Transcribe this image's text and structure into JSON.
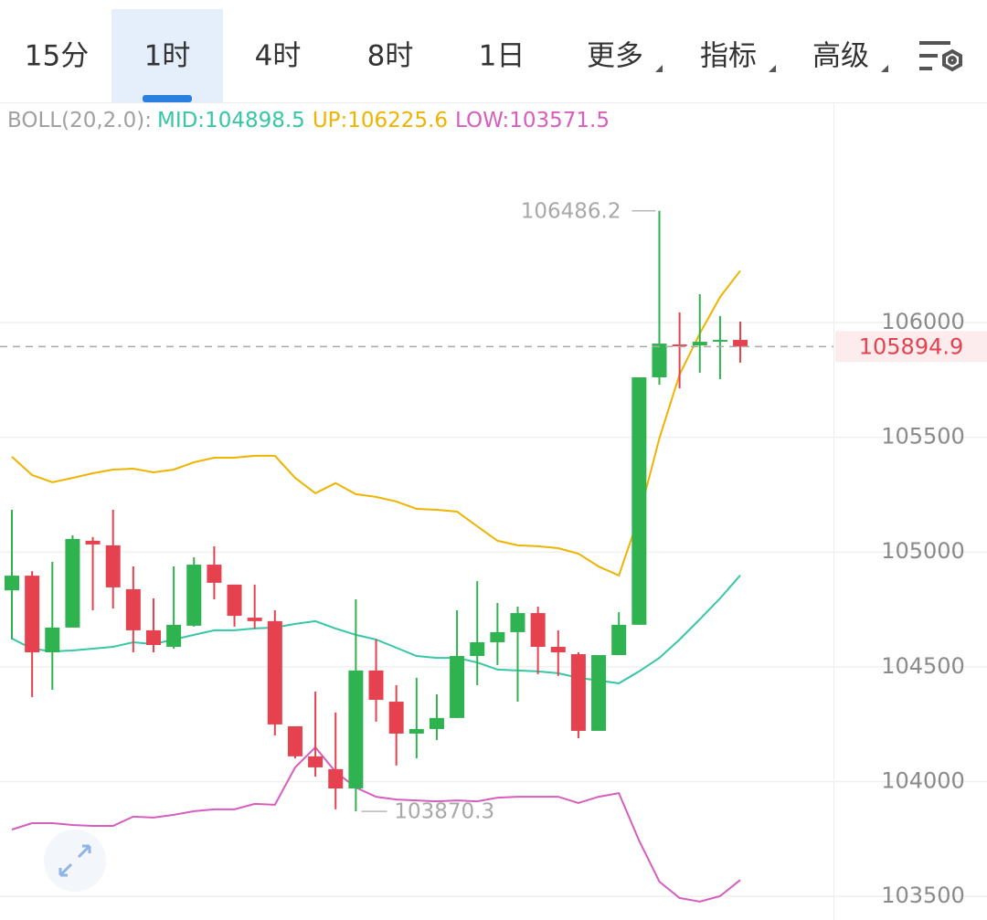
{
  "tabs": [
    {
      "label": "15分"
    },
    {
      "label": "1时"
    },
    {
      "label": "4时"
    },
    {
      "label": "8时"
    },
    {
      "label": "1日"
    },
    {
      "label": "更多",
      "dropdown": true
    },
    {
      "label": "指标",
      "dropdown": true
    },
    {
      "label": "高级",
      "dropdown": true
    }
  ],
  "selected_tab": 1,
  "chart_data": {
    "type": "candlestick",
    "indicator": "BOLL(20,2.0):",
    "up_color": "#2fb350",
    "down_color": "#e5414f",
    "open": [
      104833,
      104897,
      104563,
      104671,
      105049,
      105029,
      104838,
      104659,
      104587,
      104679,
      104945,
      104858,
      104714,
      104699,
      104241,
      104110,
      104054,
      103970,
      104484,
      104348,
      104209,
      104229,
      104277,
      104547,
      104607,
      104651,
      104734,
      104587,
      104555,
      104221,
      104551,
      104683,
      105761,
      105904,
      105900,
      105916,
      105924
    ],
    "high": [
      105184,
      104917,
      104957,
      105073,
      105065,
      105184,
      104937,
      104798,
      104937,
      104977,
      105025,
      104858,
      104858,
      104746,
      104241,
      104392,
      104301,
      104794,
      104619,
      104420,
      104452,
      104380,
      104746,
      104873,
      104778,
      104762,
      104762,
      104659,
      104563,
      104551,
      104738,
      105761,
      106486.2,
      106044,
      106123,
      106028,
      106004
    ],
    "low": [
      104619,
      104368,
      104400,
      104671,
      104746,
      104754,
      104563,
      104563,
      104579,
      104675,
      104794,
      104675,
      104667,
      104201,
      104101,
      104022,
      103879,
      103870.3,
      104261,
      104070,
      104101,
      104181,
      104277,
      104420,
      104508,
      104348,
      104468,
      104460,
      104189,
      104221,
      104551,
      104683,
      105729,
      105713,
      105781,
      105753,
      105825
    ],
    "close": [
      104897,
      104563,
      104671,
      105057,
      105033,
      104846,
      104659,
      104595,
      104683,
      104945,
      104866,
      104722,
      104699,
      104249,
      104110,
      104062,
      103970,
      104484,
      104356,
      104209,
      104229,
      104277,
      104547,
      104607,
      104651,
      104734,
      104587,
      104563,
      104221,
      104551,
      104683,
      105761,
      105908,
      105896,
      105916,
      105924,
      105894.9
    ],
    "series": [
      {
        "name": "MID:104898.5",
        "color": "#36c7a5",
        "values": [
          104623,
          104579,
          104567,
          104571,
          104579,
          104587,
          104607,
          104599,
          104619,
          104639,
          104659,
          104659,
          104667,
          104671,
          104687,
          104699,
          104667,
          104639,
          104619,
          104583,
          104547,
          104539,
          104539,
          104519,
          104488,
          104484,
          104480,
          104472,
          104452,
          104440,
          104428,
          104480,
          104539,
          104619,
          104707,
          104798,
          104898.5
        ]
      },
      {
        "name": "UP:106225.6",
        "color": "#efb300",
        "values": [
          105415,
          105335,
          105304,
          105323,
          105343,
          105359,
          105363,
          105347,
          105359,
          105391,
          105411,
          105411,
          105419,
          105419,
          105323,
          105256,
          105300,
          105252,
          105240,
          105220,
          105188,
          105184,
          105176,
          105112,
          105049,
          105029,
          105025,
          105017,
          104993,
          104937,
          104898,
          105156,
          105495,
          105773,
          105952,
          106111,
          106225.6
        ]
      },
      {
        "name": "LOW:103571.5",
        "color": "#d75dbf",
        "values": [
          103791,
          103819,
          103819,
          103811,
          103807,
          103807,
          103847,
          103843,
          103855,
          103871,
          103879,
          103879,
          103903,
          103899,
          104062,
          104149,
          104042,
          103974,
          103934,
          103922,
          103918,
          103914,
          103918,
          103914,
          103930,
          103934,
          103934,
          103934,
          103907,
          103934,
          103950,
          103743,
          103564,
          103493,
          103477,
          103501,
          103571.5
        ]
      }
    ],
    "ylim": [
      103397,
      106955
    ],
    "yticks": [
      103500,
      104000,
      104500,
      105000,
      105500,
      106000
    ],
    "grid": true,
    "last_price_color": "#e5414f"
  }
}
